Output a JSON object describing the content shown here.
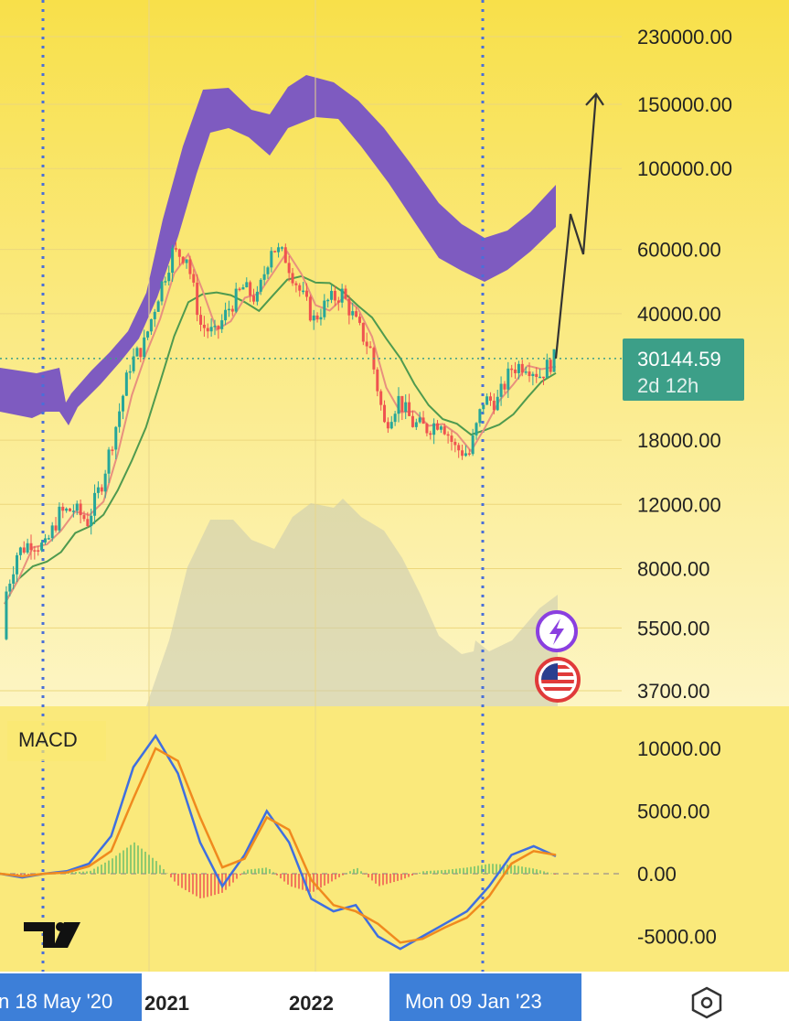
{
  "chart_data": [
    {
      "type": "candlestick",
      "scale": "log",
      "price_axis": [
        "230000.00",
        "150000.00",
        "100000.00",
        "60000.00",
        "40000.00",
        "18000.00",
        "12000.00",
        "8000.00",
        "5500.00",
        "3700.00"
      ],
      "price_axis_values": [
        230000,
        150000,
        100000,
        60000,
        40000,
        18000,
        12000,
        8000,
        5500,
        3700
      ],
      "ylim": [
        3000,
        260000
      ],
      "last_price": "30144.59",
      "last_price_value": 30144.59,
      "countdown": "2d 12h",
      "time_axis_labels": [
        "2021",
        "2022"
      ],
      "highlighted_dates": [
        "n 18 May '20",
        "Mon 09 Jan '23"
      ],
      "price_series": [
        {
          "date": "2020-03",
          "close": 6400
        },
        {
          "date": "2020-04",
          "close": 8800
        },
        {
          "date": "2020-05",
          "close": 9500
        },
        {
          "date": "2020-06",
          "close": 9150
        },
        {
          "date": "2020-07",
          "close": 11300
        },
        {
          "date": "2020-08",
          "close": 11650
        },
        {
          "date": "2020-09",
          "close": 10800
        },
        {
          "date": "2020-10",
          "close": 13800
        },
        {
          "date": "2020-11",
          "close": 19700
        },
        {
          "date": "2020-12",
          "close": 29000
        },
        {
          "date": "2021-01",
          "close": 33100
        },
        {
          "date": "2021-02",
          "close": 45200
        },
        {
          "date": "2021-03",
          "close": 58800
        },
        {
          "date": "2021-04",
          "close": 57700
        },
        {
          "date": "2021-05",
          "close": 37300
        },
        {
          "date": "2021-06",
          "close": 35000
        },
        {
          "date": "2021-07",
          "close": 41500
        },
        {
          "date": "2021-08",
          "close": 47100
        },
        {
          "date": "2021-09",
          "close": 43800
        },
        {
          "date": "2021-10",
          "close": 61300
        },
        {
          "date": "2021-11",
          "close": 57000
        },
        {
          "date": "2021-12",
          "close": 46300
        },
        {
          "date": "2022-01",
          "close": 38500
        },
        {
          "date": "2022-02",
          "close": 43200
        },
        {
          "date": "2022-03",
          "close": 45500
        },
        {
          "date": "2022-04",
          "close": 37600
        },
        {
          "date": "2022-05",
          "close": 31800
        },
        {
          "date": "2022-06",
          "close": 19800
        },
        {
          "date": "2022-07",
          "close": 23300
        },
        {
          "date": "2022-08",
          "close": 20000
        },
        {
          "date": "2022-09",
          "close": 19400
        },
        {
          "date": "2022-10",
          "close": 20500
        },
        {
          "date": "2022-11",
          "close": 17100
        },
        {
          "date": "2022-12",
          "close": 16500
        },
        {
          "date": "2023-01",
          "close": 23100
        },
        {
          "date": "2023-02",
          "close": 23100
        },
        {
          "date": "2023-03",
          "close": 28400
        },
        {
          "date": "2023-04",
          "close": 29200
        },
        {
          "date": "2023-05",
          "close": 27200
        },
        {
          "date": "2023-06",
          "close": 30144
        }
      ],
      "projection_targets": [
        60000,
        160000
      ],
      "colors": {
        "background_top": "#f8e04a",
        "background_bottom": "#fdf5c4",
        "band": "#7e5bc0",
        "ma_fast": "#e8907e",
        "ma_slow": "#4f9a4f",
        "candle_up": "#26a69a",
        "candle_down": "#ef5350",
        "last_price_tag": "#3c9f88",
        "highlight_box": "#3d7fd8",
        "dotted_line": "#4a6fd8"
      }
    },
    {
      "type": "line",
      "title": "MACD",
      "y_axis": [
        "10000.00",
        "5000.00",
        "0.00",
        "-5000.00"
      ],
      "y_axis_values": [
        10000,
        5000,
        0,
        -5000
      ],
      "ylim": [
        -7000,
        12500
      ],
      "series": [
        {
          "color": "#3f6fe0",
          "values": [
            0,
            -300,
            0,
            200,
            800,
            3000,
            8500,
            11000,
            8000,
            2500,
            -1000,
            1500,
            5000,
            2500,
            -2000,
            -3000,
            -2500,
            -5000,
            -6000,
            -5000,
            -4000,
            -3000,
            -1000,
            1500,
            2200,
            1400
          ]
        },
        {
          "color": "#f08a1e",
          "values": [
            0,
            -200,
            0,
            100,
            600,
            1800,
            6000,
            10000,
            9000,
            4500,
            500,
            1200,
            4500,
            3500,
            -500,
            -2500,
            -3000,
            -4000,
            -5500,
            -5200,
            -4300,
            -3500,
            -1800,
            800,
            1800,
            1500
          ]
        }
      ],
      "histogram": [
        0,
        -100,
        0,
        100,
        200,
        1200,
        2500,
        1000,
        -1000,
        -2000,
        -1500,
        300,
        500,
        -1000,
        -1500,
        -500,
        500,
        -1000,
        -500,
        200,
        300,
        500,
        800,
        700,
        400,
        -100
      ],
      "colors": {
        "hist_up": "#6bbf6b",
        "hist_down": "#ef5350",
        "background": "#f8e04a"
      }
    }
  ],
  "icons": [
    "lightning-icon",
    "us-flag-icon",
    "tradingview-logo",
    "settings-icon"
  ]
}
